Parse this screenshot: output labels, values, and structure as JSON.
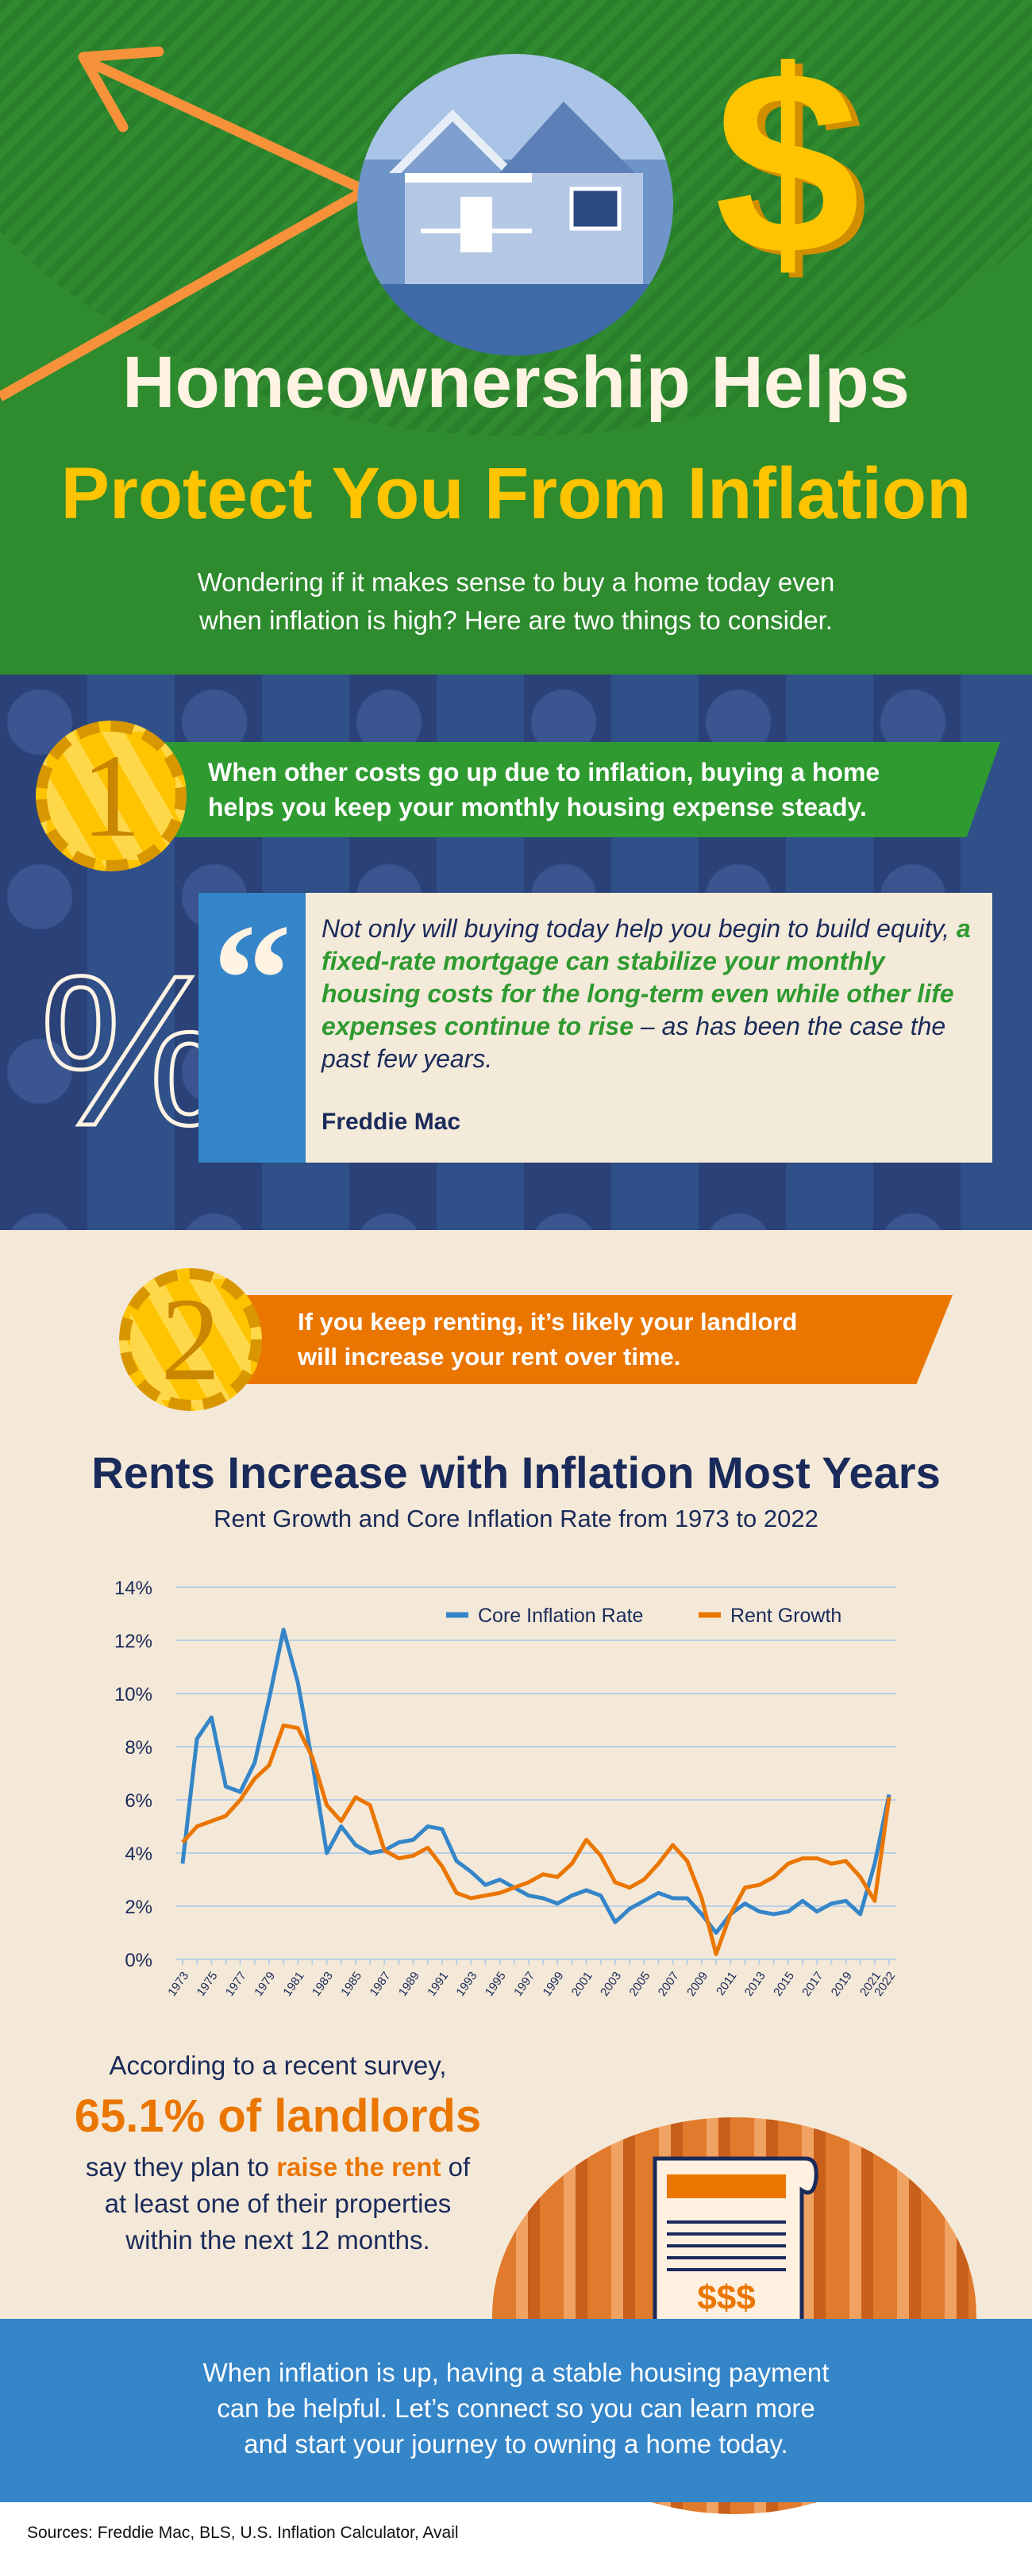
{
  "header": {
    "title_line1": "Homeownership Helps",
    "title_line2": "Protect You From Inflation",
    "subtitle_line1": "Wondering if it makes sense to buy a home today even",
    "subtitle_line2": "when inflation is high? Here are two things to consider."
  },
  "point1": {
    "number": "1",
    "text_line1": "When other costs go up due to inflation, buying a home",
    "text_line2": "helps you keep your monthly housing expense steady."
  },
  "quote": {
    "mark": "“",
    "percent": "%",
    "text_plain_start": "Not only will buying today help you begin to build equity, ",
    "text_highlight": "a fixed-rate mortgage can stabilize your monthly housing costs for the long-term even while other life expenses continue to rise",
    "text_plain_end": " – as has been the case the past few years.",
    "attribution": "Freddie Mac"
  },
  "point2": {
    "number": "2",
    "text_line1": "If you keep renting, it’s likely your landlord",
    "text_line2": "will increase your rent over time."
  },
  "chart_data": {
    "type": "line",
    "title": "Rents Increase with Inflation Most Years",
    "subtitle": "Rent Growth and Core Inflation Rate from 1973 to 2022",
    "xlabel": "",
    "ylabel": "",
    "ylim": [
      0,
      14
    ],
    "yticks": [
      "0%",
      "2%",
      "4%",
      "6%",
      "8%",
      "10%",
      "12%",
      "14%"
    ],
    "grid": true,
    "legend": "top-right",
    "x": [
      1973,
      1974,
      1975,
      1976,
      1977,
      1978,
      1979,
      1980,
      1981,
      1982,
      1983,
      1984,
      1985,
      1986,
      1987,
      1988,
      1989,
      1990,
      1991,
      1992,
      1993,
      1994,
      1995,
      1996,
      1997,
      1998,
      1999,
      2000,
      2001,
      2002,
      2003,
      2004,
      2005,
      2006,
      2007,
      2008,
      2009,
      2010,
      2011,
      2012,
      2013,
      2014,
      2015,
      2016,
      2017,
      2018,
      2019,
      2020,
      2021,
      2022
    ],
    "xtick_labels": [
      "1973",
      "1975",
      "1977",
      "1979",
      "1981",
      "1983",
      "1985",
      "1987",
      "1989",
      "1991",
      "1993",
      "1995",
      "1997",
      "1999",
      "2001",
      "2003",
      "2005",
      "2007",
      "2009",
      "2011",
      "2013",
      "2015",
      "2017",
      "2019",
      "2021",
      "2022"
    ],
    "series": [
      {
        "name": "Core Inflation Rate",
        "color": "#3585c9",
        "values": [
          3.6,
          8.3,
          9.1,
          6.5,
          6.3,
          7.4,
          9.8,
          12.4,
          10.4,
          7.4,
          4.0,
          5.0,
          4.3,
          4.0,
          4.1,
          4.4,
          4.5,
          5.0,
          4.9,
          3.7,
          3.3,
          2.8,
          3.0,
          2.7,
          2.4,
          2.3,
          2.1,
          2.4,
          2.6,
          2.4,
          1.4,
          1.9,
          2.2,
          2.5,
          2.3,
          2.3,
          1.7,
          1.0,
          1.7,
          2.1,
          1.8,
          1.7,
          1.8,
          2.2,
          1.8,
          2.1,
          2.2,
          1.7,
          3.6,
          6.2
        ]
      },
      {
        "name": "Rent Growth",
        "color": "#ea7600",
        "values": [
          4.4,
          5.0,
          5.2,
          5.4,
          6.0,
          6.8,
          7.3,
          8.8,
          8.7,
          7.6,
          5.8,
          5.2,
          6.1,
          5.8,
          4.1,
          3.8,
          3.9,
          4.2,
          3.5,
          2.5,
          2.3,
          2.4,
          2.5,
          2.7,
          2.9,
          3.2,
          3.1,
          3.6,
          4.5,
          3.9,
          2.9,
          2.7,
          3.0,
          3.6,
          4.3,
          3.7,
          2.3,
          0.2,
          1.7,
          2.7,
          2.8,
          3.1,
          3.6,
          3.8,
          3.8,
          3.6,
          3.7,
          3.1,
          2.2,
          6.1
        ]
      }
    ]
  },
  "survey": {
    "line1": "According to a recent survey,",
    "stat": "65.1% of landlords",
    "line3_start": "say they plan to ",
    "line3_highlight": "raise the rent",
    "line3_end": " of",
    "line4": "at least one of their properties",
    "line5": "within the next 12 months.",
    "lease_text": "$$$"
  },
  "footer": {
    "line1": "When inflation is up, having a stable housing payment",
    "line2": "can be helpful. Let’s connect so you can learn more",
    "line3": "and start your journey to owning a home today."
  },
  "sources": "Sources: Freddie Mac, BLS, U.S. Inflation Calculator, Avail"
}
